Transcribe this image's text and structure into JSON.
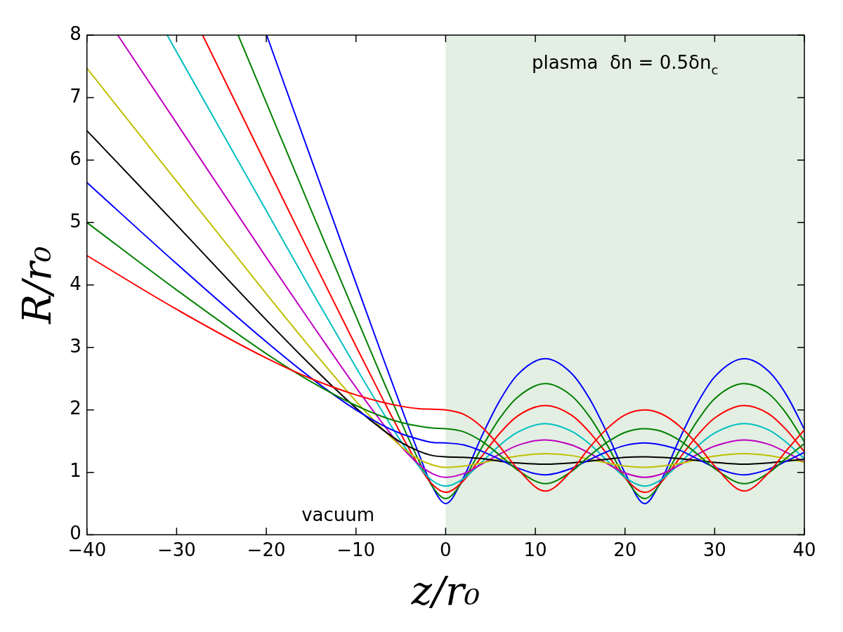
{
  "chart_data": {
    "type": "line",
    "xlabel": "z/r₀",
    "ylabel": "R/r₀",
    "xlim": [
      -40,
      40
    ],
    "ylim": [
      0,
      8
    ],
    "xticks": [
      -40,
      -30,
      -20,
      -10,
      0,
      10,
      20,
      30,
      40
    ],
    "yticks": [
      0,
      1,
      2,
      3,
      4,
      5,
      6,
      7,
      8
    ],
    "grid": false,
    "legend": false,
    "marker": "none",
    "line_style": "solid",
    "bands": [
      {
        "axis": "x",
        "from": 0,
        "to": 40,
        "label": "plasma  δn = 0.5δn$_{c}$",
        "color": "#e3efe3"
      }
    ],
    "annotations": [
      "vacuum"
    ],
    "series": [
      {
        "color": "#ff0000",
        "x": [
          -40,
          -30,
          -20,
          -15,
          -10,
          -7,
          -5,
          -3,
          -1.5,
          0,
          2,
          4,
          6,
          8,
          11.1,
          14,
          16,
          18,
          20,
          22.2,
          24,
          26,
          28,
          30,
          33.3,
          36,
          38,
          40
        ],
        "values": [
          4.47,
          3.61,
          2.83,
          2.5,
          2.24,
          2.12,
          2.06,
          2.02,
          2.01,
          2.0,
          1.93,
          1.73,
          1.42,
          1.06,
          0.7,
          1.02,
          1.39,
          1.7,
          1.92,
          2.0,
          1.94,
          1.75,
          1.46,
          1.1,
          0.7,
          0.99,
          1.35,
          1.68
        ]
      },
      {
        "color": "#008000",
        "x": [
          -40,
          -30,
          -20,
          -15,
          -10,
          -7,
          -5,
          -3,
          -1.5,
          0,
          2,
          4,
          6,
          8,
          11.1,
          14,
          16,
          18,
          20,
          22.2,
          24,
          26,
          28,
          30,
          33.3,
          36,
          38,
          40
        ],
        "values": [
          5.0,
          3.92,
          2.9,
          2.45,
          2.07,
          1.89,
          1.8,
          1.74,
          1.71,
          1.7,
          1.65,
          1.5,
          1.28,
          1.04,
          0.82,
          1.01,
          1.26,
          1.48,
          1.64,
          1.7,
          1.66,
          1.52,
          1.3,
          1.06,
          0.82,
          0.99,
          1.23,
          1.46
        ]
      },
      {
        "color": "#0000ff",
        "x": [
          -40,
          -30,
          -20,
          -15,
          -10,
          -7,
          -5,
          -3,
          -1.5,
          0,
          2,
          4,
          6,
          8,
          11.1,
          14,
          16,
          18,
          20,
          22.2,
          24,
          26,
          28,
          30,
          33.3,
          36,
          38,
          40
        ],
        "values": [
          5.64,
          4.34,
          3.09,
          2.51,
          2.0,
          1.75,
          1.62,
          1.53,
          1.48,
          1.47,
          1.44,
          1.34,
          1.21,
          1.07,
          0.96,
          1.06,
          1.2,
          1.33,
          1.43,
          1.47,
          1.44,
          1.36,
          1.22,
          1.08,
          0.96,
          1.05,
          1.18,
          1.32
        ]
      },
      {
        "color": "#000000",
        "x": [
          -40,
          -30,
          -20,
          -15,
          -10,
          -7,
          -5,
          -3,
          -1.5,
          0,
          2,
          4,
          6,
          8,
          11.1,
          14,
          16,
          18,
          20,
          22.2,
          24,
          26,
          28,
          30,
          33.3,
          36,
          38,
          40
        ],
        "values": [
          6.47,
          4.96,
          3.44,
          2.71,
          2.03,
          1.68,
          1.48,
          1.34,
          1.27,
          1.25,
          1.24,
          1.22,
          1.18,
          1.15,
          1.13,
          1.15,
          1.18,
          1.21,
          1.24,
          1.25,
          1.24,
          1.22,
          1.19,
          1.16,
          1.13,
          1.15,
          1.18,
          1.21
        ]
      },
      {
        "color": "#bfbf00",
        "x": [
          -40,
          -30,
          -20,
          -15,
          -10,
          -7,
          -5,
          -3,
          -1.5,
          0,
          2,
          4,
          6,
          8,
          11.1,
          14,
          16,
          18,
          20,
          22.2,
          24,
          26,
          28,
          30,
          33.3,
          36,
          38,
          40
        ],
        "values": [
          7.47,
          5.66,
          3.86,
          2.98,
          2.14,
          1.69,
          1.42,
          1.21,
          1.12,
          1.08,
          1.1,
          1.15,
          1.21,
          1.26,
          1.3,
          1.27,
          1.21,
          1.15,
          1.1,
          1.08,
          1.1,
          1.14,
          1.2,
          1.26,
          1.3,
          1.27,
          1.22,
          1.16
        ]
      },
      {
        "color": "#bf00bf",
        "x": [
          -36.56,
          -30,
          -20,
          -15,
          -10,
          -7,
          -5,
          -3,
          -1.5,
          0,
          2,
          4,
          6,
          8,
          11.1,
          14,
          16,
          18,
          20,
          22.2,
          24,
          26,
          28,
          30,
          33.3,
          36,
          38,
          40
        ],
        "values": [
          8.0,
          6.59,
          4.44,
          3.39,
          2.36,
          1.78,
          1.42,
          1.13,
          0.98,
          0.92,
          0.98,
          1.13,
          1.29,
          1.43,
          1.52,
          1.44,
          1.31,
          1.14,
          0.99,
          0.92,
          0.97,
          1.11,
          1.28,
          1.42,
          1.52,
          1.45,
          1.32,
          1.16
        ]
      },
      {
        "color": "#00bfbf",
        "x": [
          -31.05,
          -30,
          -20,
          -15,
          -10,
          -7,
          -5,
          -3,
          -1.5,
          0,
          2,
          4,
          6,
          8,
          11.1,
          14,
          16,
          18,
          20,
          22.2,
          24,
          26,
          28,
          30,
          33.3,
          36,
          38,
          40
        ],
        "values": [
          8.0,
          7.73,
          5.19,
          3.92,
          2.68,
          1.96,
          1.5,
          1.1,
          0.87,
          0.78,
          0.9,
          1.16,
          1.43,
          1.64,
          1.78,
          1.66,
          1.46,
          1.19,
          0.92,
          0.78,
          0.88,
          1.13,
          1.41,
          1.63,
          1.78,
          1.68,
          1.48,
          1.22
        ]
      },
      {
        "color": "#ff0000",
        "x": [
          -27.1,
          -20,
          -15,
          -10,
          -7,
          -5,
          -3,
          -1.5,
          0,
          2,
          4,
          6,
          8,
          11.1,
          14,
          16,
          18,
          20,
          22.2,
          24,
          26,
          28,
          30,
          33.3,
          36,
          38,
          40
        ],
        "values": [
          8.0,
          5.92,
          4.46,
          3.02,
          2.17,
          1.62,
          1.11,
          0.81,
          0.68,
          0.87,
          1.25,
          1.62,
          1.9,
          2.07,
          1.92,
          1.65,
          1.29,
          0.91,
          0.68,
          0.84,
          1.21,
          1.58,
          1.87,
          2.07,
          1.94,
          1.68,
          1.33
        ]
      },
      {
        "color": "#008000",
        "x": [
          -23.14,
          -20,
          -15,
          -10,
          -7,
          -5,
          -3,
          -1.5,
          0,
          2,
          4,
          6,
          8,
          11.1,
          14,
          16,
          18,
          20,
          22.2,
          24,
          26,
          28,
          30,
          33.3,
          36,
          38,
          40
        ],
        "values": [
          8.0,
          6.92,
          5.2,
          3.5,
          2.48,
          1.82,
          1.19,
          0.78,
          0.58,
          0.88,
          1.39,
          1.86,
          2.2,
          2.42,
          2.23,
          1.9,
          1.44,
          0.92,
          0.58,
          0.83,
          1.33,
          1.81,
          2.18,
          2.42,
          2.26,
          1.94,
          1.49
        ]
      },
      {
        "color": "#0000ff",
        "x": [
          -19.96,
          -15,
          -10,
          -7,
          -5,
          -3,
          -1.5,
          0,
          2,
          4,
          6,
          8,
          11.1,
          14,
          16,
          18,
          20,
          22.2,
          24,
          26,
          28,
          30,
          33.3,
          36,
          38,
          40
        ],
        "values": [
          8.0,
          6.02,
          4.03,
          2.84,
          2.06,
          1.3,
          0.78,
          0.5,
          0.92,
          1.57,
          2.14,
          2.56,
          2.82,
          2.59,
          2.19,
          1.63,
          0.99,
          0.5,
          0.86,
          1.51,
          2.09,
          2.53,
          2.82,
          2.62,
          2.24,
          1.69
        ]
      }
    ]
  }
}
